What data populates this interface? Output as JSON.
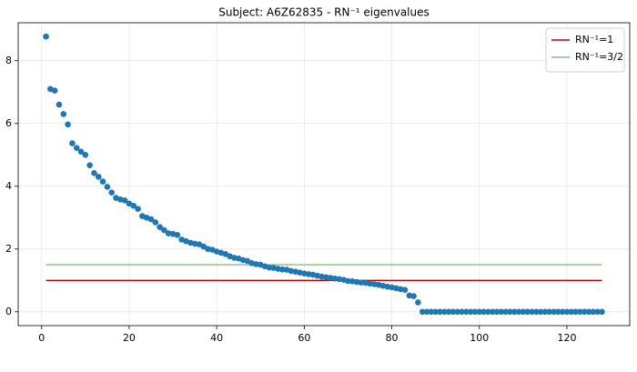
{
  "chart_data": {
    "type": "scatter",
    "title": "Subject: A6Z62835 - RN⁻¹ eigenvalues",
    "x": [
      1,
      2,
      3,
      4,
      5,
      6,
      7,
      8,
      9,
      10,
      11,
      12,
      13,
      14,
      15,
      16,
      17,
      18,
      19,
      20,
      21,
      22,
      23,
      24,
      25,
      26,
      27,
      28,
      29,
      30,
      31,
      32,
      33,
      34,
      35,
      36,
      37,
      38,
      39,
      40,
      41,
      42,
      43,
      44,
      45,
      46,
      47,
      48,
      49,
      50,
      51,
      52,
      53,
      54,
      55,
      56,
      57,
      58,
      59,
      60,
      61,
      62,
      63,
      64,
      65,
      66,
      67,
      68,
      69,
      70,
      71,
      72,
      73,
      74,
      75,
      76,
      77,
      78,
      79,
      80,
      81,
      82,
      83,
      84,
      85,
      86,
      87,
      88,
      89,
      90,
      91,
      92,
      93,
      94,
      95,
      96,
      97,
      98,
      99,
      100,
      101,
      102,
      103,
      104,
      105,
      106,
      107,
      108,
      109,
      110,
      111,
      112,
      113,
      114,
      115,
      116,
      117,
      118,
      119,
      120,
      121,
      122,
      123,
      124,
      125,
      126,
      127,
      128
    ],
    "values": [
      8.77,
      7.1,
      7.05,
      6.6,
      6.3,
      5.97,
      5.37,
      5.22,
      5.1,
      5.0,
      4.67,
      4.42,
      4.3,
      4.15,
      3.98,
      3.8,
      3.63,
      3.58,
      3.55,
      3.45,
      3.38,
      3.28,
      3.05,
      3.0,
      2.95,
      2.85,
      2.7,
      2.6,
      2.5,
      2.48,
      2.45,
      2.3,
      2.25,
      2.2,
      2.17,
      2.15,
      2.08,
      2.0,
      1.98,
      1.92,
      1.88,
      1.84,
      1.77,
      1.72,
      1.7,
      1.65,
      1.62,
      1.55,
      1.52,
      1.5,
      1.45,
      1.41,
      1.4,
      1.37,
      1.35,
      1.34,
      1.3,
      1.28,
      1.25,
      1.22,
      1.2,
      1.18,
      1.15,
      1.12,
      1.1,
      1.08,
      1.06,
      1.04,
      1.02,
      0.98,
      0.97,
      0.95,
      0.93,
      0.92,
      0.9,
      0.88,
      0.86,
      0.83,
      0.8,
      0.78,
      0.75,
      0.72,
      0.7,
      0.52,
      0.5,
      0.3,
      0,
      0,
      0,
      0,
      0,
      0,
      0,
      0,
      0,
      0,
      0,
      0,
      0,
      0,
      0,
      0,
      0,
      0,
      0,
      0,
      0,
      0,
      0,
      0,
      0,
      0,
      0,
      0,
      0,
      0,
      0,
      0,
      0,
      0,
      0,
      0,
      0,
      0,
      0,
      0,
      0,
      0
    ],
    "color": "#1f77b4",
    "lines": [
      {
        "name": "RN⁻¹=1",
        "color": "#c00000",
        "x": [
          1,
          128
        ],
        "values": [
          1,
          1
        ]
      },
      {
        "name": "RN⁻¹=3/2",
        "color": "#80c080",
        "x": [
          1,
          128
        ],
        "values": [
          1.5,
          1.5
        ]
      }
    ],
    "xlim": [
      -5.35,
      134.35
    ],
    "ylim": [
      -0.44,
      9.21
    ],
    "xticks": [
      0,
      20,
      40,
      60,
      80,
      100,
      120
    ],
    "yticks": [
      0,
      2,
      4,
      6,
      8
    ],
    "grid": true,
    "legend": "upper right"
  }
}
